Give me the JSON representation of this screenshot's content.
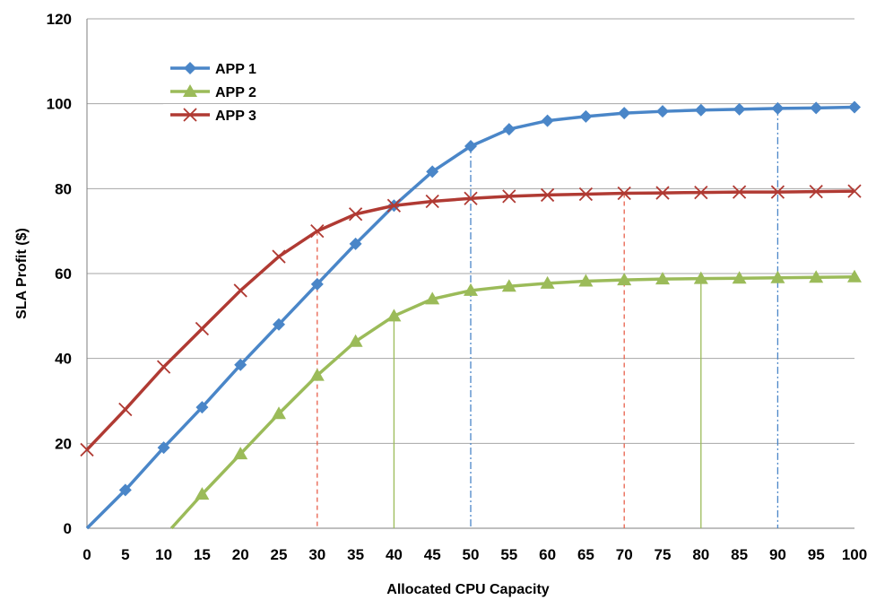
{
  "chart_data": {
    "type": "line",
    "title": "",
    "xlabel": "Allocated CPU Capacity",
    "ylabel": "SLA Profit ($)",
    "x": [
      0,
      5,
      10,
      15,
      20,
      25,
      30,
      35,
      40,
      45,
      50,
      55,
      60,
      65,
      70,
      75,
      80,
      85,
      90,
      95,
      100
    ],
    "xlim": [
      0,
      100
    ],
    "ylim": [
      0,
      120
    ],
    "xticks": [
      0,
      5,
      10,
      15,
      20,
      25,
      30,
      35,
      40,
      45,
      50,
      55,
      60,
      65,
      70,
      75,
      80,
      85,
      90,
      95,
      100
    ],
    "yticks": [
      0,
      20,
      40,
      60,
      80,
      100,
      120
    ],
    "grid": "horizontal",
    "legend_position": "top-left",
    "series": [
      {
        "name": "APP 1",
        "color": "#4a86c8",
        "marker": "diamond",
        "points": [
          [
            0,
            0
          ],
          [
            5,
            9
          ],
          [
            10,
            19
          ],
          [
            15,
            28.5
          ],
          [
            20,
            38.5
          ],
          [
            25,
            48
          ],
          [
            30,
            57.5
          ],
          [
            35,
            67
          ],
          [
            40,
            76
          ],
          [
            45,
            84
          ],
          [
            50,
            90
          ],
          [
            55,
            94
          ],
          [
            60,
            96
          ],
          [
            65,
            97
          ],
          [
            70,
            97.8
          ],
          [
            75,
            98.2
          ],
          [
            80,
            98.5
          ],
          [
            85,
            98.7
          ],
          [
            90,
            98.9
          ],
          [
            95,
            99
          ],
          [
            100,
            99.2
          ]
        ]
      },
      {
        "name": "APP 2",
        "color": "#9bbb59",
        "marker": "triangle",
        "points": [
          [
            11,
            0
          ],
          [
            15,
            8
          ],
          [
            20,
            17.5
          ],
          [
            25,
            27
          ],
          [
            30,
            36
          ],
          [
            35,
            44
          ],
          [
            40,
            50
          ],
          [
            45,
            54
          ],
          [
            50,
            56
          ],
          [
            55,
            57
          ],
          [
            60,
            57.7
          ],
          [
            65,
            58.2
          ],
          [
            70,
            58.5
          ],
          [
            75,
            58.7
          ],
          [
            80,
            58.8
          ],
          [
            85,
            58.9
          ],
          [
            90,
            59
          ],
          [
            95,
            59.1
          ],
          [
            100,
            59.2
          ]
        ]
      },
      {
        "name": "APP 3",
        "color": "#b03a33",
        "marker": "x",
        "points": [
          [
            0,
            18.5
          ],
          [
            5,
            28
          ],
          [
            10,
            38
          ],
          [
            15,
            47
          ],
          [
            20,
            56
          ],
          [
            25,
            64
          ],
          [
            30,
            70
          ],
          [
            35,
            74
          ],
          [
            40,
            76
          ],
          [
            45,
            77
          ],
          [
            50,
            77.7
          ],
          [
            55,
            78.2
          ],
          [
            60,
            78.5
          ],
          [
            65,
            78.7
          ],
          [
            70,
            78.9
          ],
          [
            75,
            79
          ],
          [
            80,
            79.1
          ],
          [
            85,
            79.2
          ],
          [
            90,
            79.2
          ],
          [
            95,
            79.3
          ],
          [
            100,
            79.4
          ]
        ]
      }
    ],
    "reference_lines": [
      {
        "x": 30,
        "y": 70,
        "color": "#e8604c",
        "style": "dashed"
      },
      {
        "x": 70,
        "y": 78.9,
        "color": "#e8604c",
        "style": "dashed"
      },
      {
        "x": 40,
        "y": 50,
        "color": "#9bbb59",
        "style": "solid"
      },
      {
        "x": 80,
        "y": 58.8,
        "color": "#9bbb59",
        "style": "solid"
      },
      {
        "x": 50,
        "y": 90,
        "color": "#4a86c8",
        "style": "dashdot"
      },
      {
        "x": 90,
        "y": 98.9,
        "color": "#4a86c8",
        "style": "dashdot"
      }
    ]
  }
}
